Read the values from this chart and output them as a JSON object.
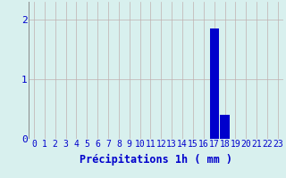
{
  "hours": [
    0,
    1,
    2,
    3,
    4,
    5,
    6,
    7,
    8,
    9,
    10,
    11,
    12,
    13,
    14,
    15,
    16,
    17,
    18,
    19,
    20,
    21,
    22,
    23
  ],
  "values": [
    0,
    0,
    0,
    0,
    0,
    0,
    0,
    0,
    0,
    0,
    0,
    0,
    0,
    0,
    0,
    0,
    0,
    1.85,
    0.4,
    0,
    0,
    0,
    0,
    0
  ],
  "bar_color": "#0000cc",
  "background_color": "#d8f0ee",
  "grid_color": "#c0b0b0",
  "text_color": "#0000cc",
  "xlabel": "Précipitations 1h ( mm )",
  "ylim": [
    0,
    2.3
  ],
  "yticks": [
    0,
    1,
    2
  ],
  "xlim": [
    -0.5,
    23.5
  ],
  "xlabel_fontsize": 8.5,
  "tick_fontsize": 7
}
